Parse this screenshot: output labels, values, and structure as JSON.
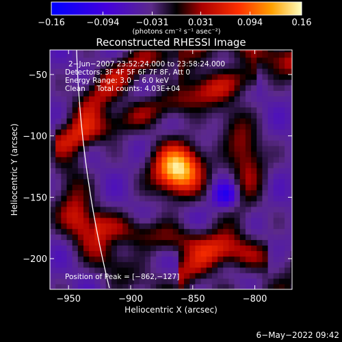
{
  "chart_data": {
    "type": "heatmap",
    "title": "Reconstructed RHESSI Image",
    "xlabel": "Heliocentric X (arcsec)",
    "ylabel": "Heliocentric Y (arcsec)",
    "xlim": [
      -965,
      -770
    ],
    "ylim": [
      -225,
      -30
    ],
    "x_ticks": [
      -950,
      -900,
      -850,
      -800
    ],
    "x_tick_labels": [
      "−950",
      "−900",
      "−850",
      "−800"
    ],
    "y_ticks": [
      -50,
      -100,
      -150,
      -200
    ],
    "y_tick_labels": [
      "−50",
      "−100",
      "−150",
      "−200"
    ],
    "colorbar": {
      "min": -0.16,
      "max": 0.16,
      "ticks": [
        -0.16,
        -0.094,
        -0.031,
        0.031,
        0.094,
        0.16
      ],
      "tick_labels": [
        "−0.16",
        "−0.094",
        "−0.031",
        "0.031",
        "0.094",
        "0.16"
      ],
      "units_label": "(photons cm⁻² s⁻¹ asec⁻²)"
    },
    "info_lines": [
      "2−Jun−2007 23:52:24.000 to 23:58:24.000",
      "Detectors: 3F 4F 5F 6F 7F 8F, Att 0",
      "Energy Range: 3.0 − 6.0 keV",
      "Clean     Total counts: 4.03E+04"
    ],
    "peak_label": "Position of Peak = [−862,−127]",
    "peak": [
      -862,
      -127
    ],
    "limb_color": "#ffffff"
  },
  "footer": {
    "timestamp": "6−May−2022 09:42"
  }
}
